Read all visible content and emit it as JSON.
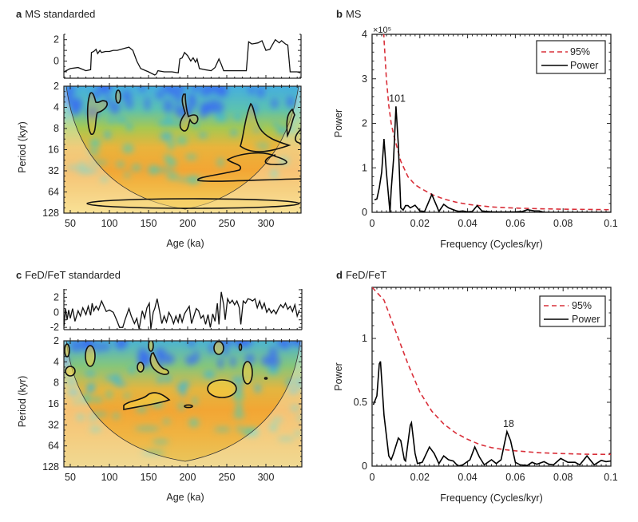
{
  "chart_data": [
    {
      "letter": "a",
      "title": "MS standarded",
      "type": "line+heatmap",
      "top_series": {
        "ylim": [
          -1.6,
          2.5
        ],
        "yticks": [
          "2",
          "0"
        ],
        "x": [
          42,
          50,
          60,
          70,
          76,
          77,
          80,
          83,
          85,
          88,
          90,
          95,
          100,
          105,
          110,
          115,
          120,
          125,
          130,
          135,
          140,
          150,
          158,
          160,
          162,
          170,
          180,
          188,
          190,
          193,
          196,
          200,
          204,
          207,
          210,
          212,
          215,
          222,
          230,
          235,
          240,
          243,
          246,
          260,
          275,
          278,
          282,
          290,
          295,
          300,
          305,
          312,
          317,
          320,
          325,
          328,
          331,
          340,
          344
        ],
        "y": [
          -1.0,
          -0.7,
          -0.6,
          -0.9,
          -0.8,
          0.8,
          0.9,
          1.1,
          0.7,
          1.0,
          0.8,
          0.9,
          0.9,
          1.0,
          1.0,
          1.1,
          1.2,
          1.3,
          1.0,
          0.0,
          -0.7,
          -1.0,
          -1.3,
          -1.2,
          -0.9,
          -1.0,
          -1.0,
          -1.1,
          0.2,
          0.3,
          0.8,
          0.5,
          0.0,
          0.3,
          -0.1,
          0.2,
          -0.7,
          -0.8,
          -0.9,
          -0.6,
          0.2,
          -0.3,
          -0.9,
          -0.9,
          -0.9,
          1.8,
          1.6,
          1.7,
          1.9,
          1.0,
          1.1,
          2.0,
          1.7,
          1.9,
          1.6,
          1.5,
          -1.0,
          -1.0,
          -1.1
        ]
      },
      "wavelet": {
        "type": "heatmap",
        "xlabel": "Age (ka)",
        "ylabel": "Period (kyr)",
        "xlim": [
          42,
          345
        ],
        "xticks": [
          "50",
          "100",
          "150",
          "200",
          "250",
          "300"
        ],
        "ylim": [
          2,
          128
        ],
        "yscale": "log2",
        "yticks": [
          "2",
          "4",
          "8",
          "16",
          "32",
          "64",
          "128"
        ],
        "colors": {
          "low": "#3b7fe6",
          "mid": "#6cc48a",
          "high": "#f2a83a",
          "peak": "#f7d84a"
        }
      }
    },
    {
      "letter": "b",
      "title": "MS",
      "type": "line",
      "xlabel": "Frequency (Cycles/kyr)",
      "ylabel": "Power",
      "multiplier": "×10⁵",
      "xlim": [
        0,
        0.1
      ],
      "ylim": [
        0,
        4
      ],
      "xticks": [
        "0",
        "0.02",
        "0.04",
        "0.06",
        "0.08",
        "0.1"
      ],
      "yticks": [
        "0",
        "1",
        "2",
        "3",
        "4"
      ],
      "legend": "top-right",
      "series": [
        {
          "name": "95%",
          "color": "#d9303a",
          "dashed": true,
          "x": [
            0.0045,
            0.005,
            0.006,
            0.007,
            0.008,
            0.009,
            0.01,
            0.012,
            0.015,
            0.018,
            0.02,
            0.025,
            0.03,
            0.035,
            0.04,
            0.05,
            0.06,
            0.07,
            0.08,
            0.09,
            0.1
          ],
          "y": [
            4.4,
            3.9,
            3.0,
            2.4,
            2.0,
            1.75,
            1.55,
            1.15,
            0.8,
            0.62,
            0.55,
            0.4,
            0.3,
            0.23,
            0.18,
            0.12,
            0.095,
            0.08,
            0.07,
            0.065,
            0.06
          ]
        },
        {
          "name": "Power",
          "color": "#000000",
          "dashed": false,
          "x": [
            0.001,
            0.002,
            0.003,
            0.004,
            0.005,
            0.006,
            0.007,
            0.0075,
            0.008,
            0.009,
            0.01,
            0.011,
            0.012,
            0.013,
            0.014,
            0.015,
            0.016,
            0.018,
            0.02,
            0.022,
            0.025,
            0.027,
            0.028,
            0.03,
            0.032,
            0.034,
            0.036,
            0.038,
            0.04,
            0.042,
            0.044,
            0.046,
            0.048,
            0.05,
            0.055,
            0.06,
            0.063,
            0.065,
            0.068,
            0.07,
            0.072,
            0.1
          ],
          "y": [
            0.28,
            0.3,
            0.55,
            0.9,
            1.65,
            0.9,
            0.3,
            0,
            0.5,
            1.2,
            2.38,
            1.5,
            0.1,
            0.05,
            0.15,
            0.15,
            0.1,
            0.16,
            0.03,
            0.02,
            0.4,
            0.15,
            0.02,
            0.18,
            0.1,
            0.06,
            0.02,
            0.03,
            0.01,
            0.02,
            0.15,
            0.03,
            0.02,
            0.01,
            0.005,
            0.01,
            0.02,
            0.06,
            0.03,
            0.03,
            0.0,
            0.0
          ]
        }
      ],
      "annotations": [
        {
          "text": "101",
          "x": 0.0099,
          "y": 2.38
        }
      ]
    },
    {
      "letter": "c",
      "title": "FeD/FeT standarded",
      "type": "line+heatmap",
      "top_series": {
        "ylim": [
          -2.3,
          3.1
        ],
        "yticks": [
          "2",
          "0",
          "-2"
        ],
        "x": [
          42,
          44,
          46,
          48,
          50,
          53,
          56,
          60,
          63,
          66,
          70,
          73,
          76,
          78,
          80,
          83,
          86,
          90,
          93,
          96,
          100,
          105,
          110,
          113,
          117,
          120,
          125,
          128,
          132,
          135,
          138,
          142,
          145,
          148,
          151,
          153,
          156,
          158,
          161,
          164,
          167,
          170,
          173,
          176,
          179,
          182,
          185,
          188,
          190,
          193,
          196,
          199,
          202,
          205,
          208,
          211,
          214,
          217,
          220,
          223,
          226,
          229,
          232,
          235,
          238,
          240,
          243,
          246,
          248,
          251,
          254,
          257,
          260,
          263,
          266,
          268,
          271,
          274,
          277,
          280,
          283,
          286,
          289,
          292,
          295,
          298,
          301,
          304,
          307,
          310,
          313,
          316,
          319,
          322,
          325,
          328,
          331,
          334,
          337,
          340,
          343
        ],
        "y": [
          -1.8,
          0.5,
          -1.0,
          0.3,
          -0.8,
          0.5,
          -1.2,
          0.2,
          -0.5,
          0.6,
          -0.3,
          0.8,
          -0.4,
          1.2,
          0.2,
          0.8,
          0.3,
          1.5,
          0.8,
          0.1,
          0.3,
          0.0,
          -1.2,
          -2.0,
          -2.0,
          -1.0,
          0.5,
          -0.5,
          -1.5,
          -0.8,
          -2.2,
          0.2,
          -0.8,
          0.6,
          1.2,
          -2.2,
          0.0,
          0.5,
          1.8,
          0.2,
          -1.5,
          -0.5,
          -1.3,
          0.0,
          -0.6,
          -1.5,
          -0.5,
          -1.3,
          -0.2,
          -1.3,
          -0.2,
          0.3,
          0.8,
          -1.5,
          -0.5,
          0.5,
          0.2,
          -0.8,
          -0.4,
          -1.6,
          -0.3,
          -2.0,
          -0.2,
          -1.2,
          1.2,
          -1.6,
          2.7,
          1.0,
          -1.0,
          1.8,
          1.2,
          1.6,
          1.0,
          1.5,
          0.6,
          -1.6,
          1.5,
          1.2,
          1.8,
          1.7,
          1.5,
          1.8,
          0.6,
          1.5,
          0.5,
          1.2,
          0.0,
          0.5,
          -0.1,
          0.3,
          -0.2,
          0.5,
          1.0,
          0.6,
          1.2,
          0.4,
          0.8,
          0.1,
          1.0,
          -0.5,
          0.3
        ]
      },
      "wavelet": {
        "type": "heatmap",
        "xlabel": "Age (ka)",
        "ylabel": "Period (kyr)",
        "xlim": [
          42,
          345
        ],
        "xticks": [
          "50",
          "100",
          "150",
          "200",
          "250",
          "300"
        ],
        "ylim": [
          2,
          128
        ],
        "yscale": "log2",
        "yticks": [
          "2",
          "4",
          "8",
          "16",
          "32",
          "64",
          "128"
        ],
        "colors": {
          "low": "#3b7fe6",
          "mid": "#6cc48a",
          "high": "#f2a83a",
          "peak": "#f7d84a"
        }
      }
    },
    {
      "letter": "d",
      "title": "FeD/FeT",
      "type": "line",
      "xlabel": "Frequency (Cycles/kyr)",
      "ylabel": "Power",
      "xlim": [
        0,
        0.1
      ],
      "ylim": [
        0,
        1.4
      ],
      "xticks": [
        "0",
        "0.02",
        "0.04",
        "0.06",
        "0.08",
        "0.1"
      ],
      "yticks": [
        "0",
        "0.5",
        "1"
      ],
      "legend": "top-right",
      "series": [
        {
          "name": "95%",
          "color": "#d9303a",
          "dashed": true,
          "x": [
            0,
            0.005,
            0.01,
            0.015,
            0.02,
            0.025,
            0.03,
            0.035,
            0.04,
            0.045,
            0.05,
            0.055,
            0.06,
            0.07,
            0.08,
            0.09,
            0.1
          ],
          "y": [
            1.4,
            1.3,
            1.05,
            0.8,
            0.58,
            0.43,
            0.33,
            0.26,
            0.21,
            0.17,
            0.145,
            0.13,
            0.12,
            0.105,
            0.098,
            0.093,
            0.092
          ]
        },
        {
          "name": "Power",
          "color": "#000000",
          "dashed": false,
          "x": [
            0.0005,
            0.002,
            0.003,
            0.0035,
            0.005,
            0.007,
            0.008,
            0.009,
            0.011,
            0.012,
            0.0135,
            0.014,
            0.016,
            0.0165,
            0.018,
            0.019,
            0.021,
            0.024,
            0.026,
            0.028,
            0.03,
            0.032,
            0.034,
            0.036,
            0.038,
            0.041,
            0.043,
            0.045,
            0.047,
            0.05,
            0.052,
            0.054,
            0.0565,
            0.058,
            0.06,
            0.062,
            0.065,
            0.067,
            0.069,
            0.072,
            0.074,
            0.076,
            0.079,
            0.082,
            0.085,
            0.087,
            0.09,
            0.093,
            0.096,
            0.098,
            0.1
          ],
          "y": [
            0.48,
            0.55,
            0.8,
            0.82,
            0.4,
            0.08,
            0.05,
            0.1,
            0.22,
            0.2,
            0.05,
            0.04,
            0.32,
            0.34,
            0.1,
            0.02,
            0.03,
            0.15,
            0.1,
            0.02,
            0.08,
            0.05,
            0.04,
            0.0,
            0.01,
            0.05,
            0.15,
            0.07,
            0.01,
            0.05,
            0.02,
            0.05,
            0.27,
            0.2,
            0.03,
            0.01,
            0.005,
            0.03,
            0.015,
            0.035,
            0.015,
            0.01,
            0.06,
            0.03,
            0.03,
            0.01,
            0.08,
            0.01,
            0.045,
            0.035,
            0.04
          ]
        }
      ],
      "annotations": [
        {
          "text": "18",
          "x": 0.0565,
          "y": 0.27
        }
      ]
    }
  ]
}
